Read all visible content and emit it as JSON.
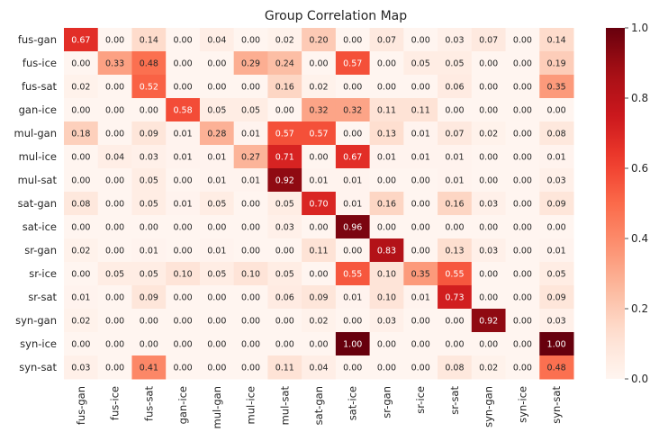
{
  "chart_data": {
    "type": "heatmap",
    "title": "Group Correlation Map",
    "rows": [
      "fus-gan",
      "fus-ice",
      "fus-sat",
      "gan-ice",
      "mul-gan",
      "mul-ice",
      "mul-sat",
      "sat-gan",
      "sat-ice",
      "sr-gan",
      "sr-ice",
      "sr-sat",
      "syn-gan",
      "syn-ice",
      "syn-sat"
    ],
    "cols": [
      "fus-gan",
      "fus-ice",
      "fus-sat",
      "gan-ice",
      "mul-gan",
      "mul-ice",
      "mul-sat",
      "sat-gan",
      "sat-ice",
      "sr-gan",
      "sr-ice",
      "sr-sat",
      "syn-gan",
      "syn-ice",
      "syn-sat"
    ],
    "values": [
      [
        0.67,
        0.0,
        0.14,
        0.0,
        0.04,
        0.0,
        0.02,
        0.2,
        0.0,
        0.07,
        0.0,
        0.03,
        0.07,
        0.0,
        0.14
      ],
      [
        0.0,
        0.33,
        0.48,
        0.0,
        0.0,
        0.29,
        0.24,
        0.0,
        0.57,
        0.0,
        0.05,
        0.05,
        0.0,
        0.0,
        0.19
      ],
      [
        0.02,
        0.0,
        0.52,
        0.0,
        0.0,
        0.0,
        0.16,
        0.02,
        0.0,
        0.0,
        0.0,
        0.06,
        0.0,
        0.0,
        0.35
      ],
      [
        0.0,
        0.0,
        0.0,
        0.58,
        0.05,
        0.05,
        0.0,
        0.32,
        0.32,
        0.11,
        0.11,
        0.0,
        0.0,
        0.0,
        0.0
      ],
      [
        0.18,
        0.0,
        0.09,
        0.01,
        0.28,
        0.01,
        0.57,
        0.57,
        0.0,
        0.13,
        0.01,
        0.07,
        0.02,
        0.0,
        0.08
      ],
      [
        0.0,
        0.04,
        0.03,
        0.01,
        0.01,
        0.27,
        0.71,
        0.0,
        0.67,
        0.01,
        0.01,
        0.01,
        0.0,
        0.0,
        0.01
      ],
      [
        0.0,
        0.0,
        0.05,
        0.0,
        0.01,
        0.01,
        0.92,
        0.01,
        0.01,
        0.0,
        0.0,
        0.01,
        0.0,
        0.0,
        0.03
      ],
      [
        0.08,
        0.0,
        0.05,
        0.01,
        0.05,
        0.0,
        0.05,
        0.7,
        0.01,
        0.16,
        0.0,
        0.16,
        0.03,
        0.0,
        0.09
      ],
      [
        0.0,
        0.0,
        0.0,
        0.0,
        0.0,
        0.0,
        0.03,
        0.0,
        0.96,
        0.0,
        0.0,
        0.0,
        0.0,
        0.0,
        0.0
      ],
      [
        0.02,
        0.0,
        0.01,
        0.0,
        0.01,
        0.0,
        0.0,
        0.11,
        0.0,
        0.83,
        0.0,
        0.13,
        0.03,
        0.0,
        0.01
      ],
      [
        0.0,
        0.05,
        0.05,
        0.1,
        0.05,
        0.1,
        0.05,
        0.0,
        0.55,
        0.1,
        0.35,
        0.55,
        0.0,
        0.0,
        0.05
      ],
      [
        0.01,
        0.0,
        0.09,
        0.0,
        0.0,
        0.0,
        0.06,
        0.09,
        0.01,
        0.1,
        0.01,
        0.73,
        0.0,
        0.0,
        0.09
      ],
      [
        0.02,
        0.0,
        0.0,
        0.0,
        0.0,
        0.0,
        0.0,
        0.02,
        0.0,
        0.03,
        0.0,
        0.0,
        0.92,
        0.0,
        0.03
      ],
      [
        0.0,
        0.0,
        0.0,
        0.0,
        0.0,
        0.0,
        0.0,
        0.0,
        1.0,
        0.0,
        0.0,
        0.0,
        0.0,
        0.0,
        1.0
      ],
      [
        0.03,
        0.0,
        0.41,
        0.0,
        0.0,
        0.0,
        0.11,
        0.04,
        0.0,
        0.0,
        0.0,
        0.08,
        0.02,
        0.0,
        0.48
      ]
    ],
    "value_format": "2 decimals",
    "colorscale": "Reds",
    "vmin": 0.0,
    "vmax": 1.0,
    "colorbar_ticks": [
      "0.0",
      "0.2",
      "0.4",
      "0.6",
      "0.8",
      "1.0"
    ],
    "grid": false
  }
}
